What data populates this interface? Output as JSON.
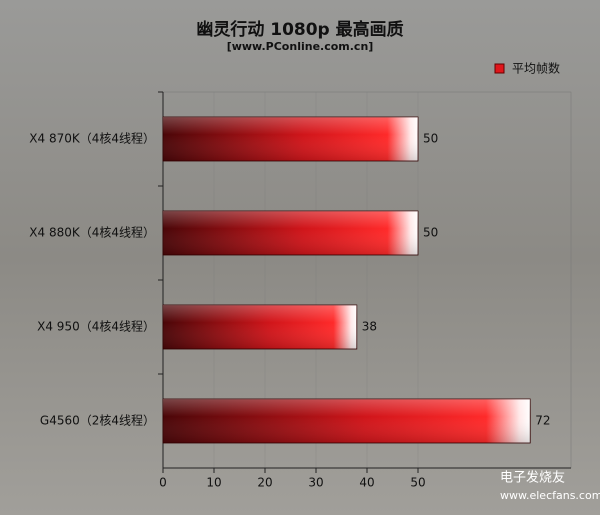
{
  "chart_data": {
    "type": "bar",
    "orientation": "horizontal",
    "title": "幽灵行动 1080p 最高画质",
    "subtitle": "[www.PConline.com.cn]",
    "categories": [
      "X4 870K（4核4线程）",
      "X4 880K（4核4线程）",
      "X4 950（4核4线程）",
      "G4560（2核4线程）"
    ],
    "series": [
      {
        "name": "平均帧数",
        "color": "#e0161b",
        "values": [
          50,
          50,
          38,
          72
        ]
      }
    ],
    "xlim": [
      0,
      80
    ],
    "xticks": [
      0,
      10,
      20,
      30,
      40,
      50
    ],
    "grid": true,
    "legend": "top-right",
    "watermark": [
      "电子发烧友",
      "www.elecfans.com"
    ]
  }
}
